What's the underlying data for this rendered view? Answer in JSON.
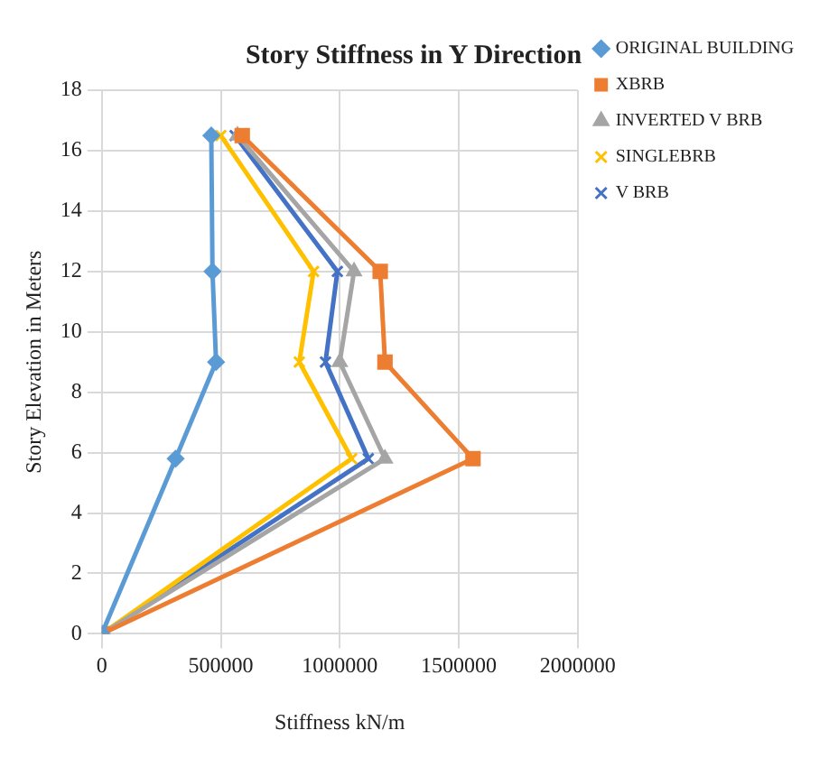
{
  "chart_data": {
    "type": "line",
    "title": "Story Stiffness in Y Direction",
    "xlabel": "Stiffness kN/m",
    "ylabel": "Story Elevation in Meters",
    "xlim": [
      0,
      2000000
    ],
    "xticks": [
      0,
      500000,
      1000000,
      1500000,
      2000000
    ],
    "ylim": [
      0,
      18
    ],
    "yticks": [
      0,
      2,
      4,
      6,
      8,
      10,
      12,
      14,
      16,
      18
    ],
    "grid": true,
    "legend": "right",
    "series": [
      {
        "name": "ORIGINAL BUILDING",
        "color": "#5b9bd5",
        "marker": "diamond",
        "x": [
          0,
          310000,
          480000,
          465000,
          460000
        ],
        "values": [
          0,
          5.8,
          9,
          12,
          16.5
        ]
      },
      {
        "name": "XBRB",
        "color": "#ed7d31",
        "marker": "square",
        "x": [
          0,
          1560000,
          1190000,
          1170000,
          590000
        ],
        "values": [
          0,
          5.8,
          9,
          12,
          16.5
        ]
      },
      {
        "name": "INVERTED V BRB",
        "color": "#a5a5a5",
        "marker": "triangle",
        "x": [
          0,
          1190000,
          1000000,
          1060000,
          570000
        ],
        "values": [
          0,
          5.8,
          9,
          12,
          16.5
        ]
      },
      {
        "name": "SINGLEBRB",
        "color": "#ffc000",
        "marker": "cross",
        "x": [
          0,
          1050000,
          830000,
          890000,
          500000
        ],
        "values": [
          0,
          5.8,
          9,
          12,
          16.5
        ]
      },
      {
        "name": "V BRB",
        "color": "#4472c4",
        "marker": "cross",
        "x": [
          0,
          1120000,
          940000,
          990000,
          560000
        ],
        "values": [
          0,
          5.8,
          9,
          12,
          16.5
        ]
      }
    ]
  }
}
